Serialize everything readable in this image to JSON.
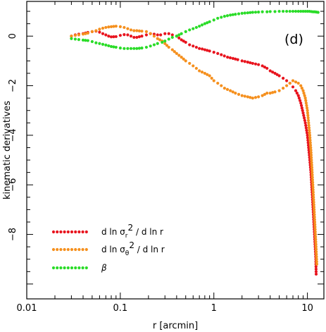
{
  "chart_data": {
    "type": "scatter",
    "xscale": "log",
    "xlim": [
      0.01,
      15
    ],
    "ylim": [
      -10.6,
      1.4
    ],
    "xlabel": "r [arcmin]",
    "ylabel": "kinematic derivatives",
    "panel_label": "(d)",
    "x_ticks": [
      0.01,
      0.1,
      1,
      10
    ],
    "x_tick_labels": [
      "0.01",
      "0.1",
      "1",
      "10"
    ],
    "y_ticks": [
      0,
      -2,
      -4,
      -6,
      -8
    ],
    "y_tick_labels": [
      "0",
      "−2",
      "−4",
      "−6",
      "−8"
    ],
    "legend_position": "bottom-left",
    "grid": false,
    "series": [
      {
        "id": "red",
        "color": "#e8141e",
        "legend": "d ln σ_r² / d ln r",
        "points": [
          [
            0.03,
            0.0
          ],
          [
            0.033,
            0.05
          ],
          [
            0.036,
            0.08
          ],
          [
            0.04,
            0.1
          ],
          [
            0.045,
            0.15
          ],
          [
            0.05,
            0.18
          ],
          [
            0.055,
            0.2
          ],
          [
            0.06,
            0.16
          ],
          [
            0.065,
            0.1
          ],
          [
            0.07,
            0.05
          ],
          [
            0.075,
            0.0
          ],
          [
            0.08,
            -0.03
          ],
          [
            0.09,
            -0.02
          ],
          [
            0.1,
            0.03
          ],
          [
            0.11,
            0.06
          ],
          [
            0.12,
            0.05
          ],
          [
            0.13,
            0.0
          ],
          [
            0.14,
            -0.05
          ],
          [
            0.15,
            -0.05
          ],
          [
            0.17,
            0.0
          ],
          [
            0.19,
            0.05
          ],
          [
            0.21,
            0.1
          ],
          [
            0.23,
            0.08
          ],
          [
            0.25,
            0.05
          ],
          [
            0.27,
            0.05
          ],
          [
            0.3,
            0.1
          ],
          [
            0.33,
            0.1
          ],
          [
            0.36,
            0.05
          ],
          [
            0.4,
            0.0
          ],
          [
            0.45,
            -0.15
          ],
          [
            0.5,
            -0.25
          ],
          [
            0.55,
            -0.35
          ],
          [
            0.6,
            -0.4
          ],
          [
            0.65,
            -0.45
          ],
          [
            0.7,
            -0.5
          ],
          [
            0.75,
            -0.52
          ],
          [
            0.8,
            -0.55
          ],
          [
            0.9,
            -0.6
          ],
          [
            1.0,
            -0.65
          ],
          [
            1.1,
            -0.7
          ],
          [
            1.2,
            -0.75
          ],
          [
            1.4,
            -0.85
          ],
          [
            1.6,
            -0.9
          ],
          [
            1.8,
            -0.95
          ],
          [
            2.0,
            -1.0
          ],
          [
            2.3,
            -1.05
          ],
          [
            2.6,
            -1.1
          ],
          [
            3.0,
            -1.15
          ],
          [
            3.3,
            -1.2
          ],
          [
            3.7,
            -1.3
          ],
          [
            4.0,
            -1.4
          ],
          [
            4.5,
            -1.5
          ],
          [
            5.0,
            -1.6
          ],
          [
            5.5,
            -1.7
          ],
          [
            6.0,
            -1.8
          ],
          [
            6.5,
            -1.9
          ],
          [
            7.0,
            -2.05
          ],
          [
            7.5,
            -2.2
          ],
          [
            8.0,
            -2.4
          ],
          [
            8.5,
            -2.7
          ],
          [
            9.0,
            -3.1
          ],
          [
            9.5,
            -3.5
          ],
          [
            10.0,
            -4.0
          ],
          [
            10.3,
            -4.5
          ],
          [
            10.6,
            -5.0
          ],
          [
            10.9,
            -5.5
          ],
          [
            11.1,
            -6.0
          ],
          [
            11.3,
            -6.5
          ],
          [
            11.5,
            -7.0
          ],
          [
            11.7,
            -7.5
          ],
          [
            11.9,
            -8.0
          ],
          [
            12.1,
            -8.5
          ],
          [
            12.3,
            -9.0
          ],
          [
            12.4,
            -9.6
          ]
        ]
      },
      {
        "id": "orange",
        "color": "#f5901e",
        "legend": "d ln σ_θ² / d ln r",
        "points": [
          [
            0.03,
            0.0
          ],
          [
            0.033,
            0.03
          ],
          [
            0.036,
            0.05
          ],
          [
            0.04,
            0.08
          ],
          [
            0.045,
            0.12
          ],
          [
            0.05,
            0.18
          ],
          [
            0.055,
            0.22
          ],
          [
            0.06,
            0.28
          ],
          [
            0.065,
            0.32
          ],
          [
            0.07,
            0.35
          ],
          [
            0.075,
            0.37
          ],
          [
            0.08,
            0.38
          ],
          [
            0.09,
            0.4
          ],
          [
            0.1,
            0.38
          ],
          [
            0.11,
            0.35
          ],
          [
            0.12,
            0.3
          ],
          [
            0.13,
            0.25
          ],
          [
            0.14,
            0.22
          ],
          [
            0.15,
            0.22
          ],
          [
            0.17,
            0.2
          ],
          [
            0.19,
            0.18
          ],
          [
            0.21,
            0.1
          ],
          [
            0.23,
            0.0
          ],
          [
            0.25,
            -0.1
          ],
          [
            0.28,
            -0.2
          ],
          [
            0.3,
            -0.3
          ],
          [
            0.33,
            -0.45
          ],
          [
            0.36,
            -0.55
          ],
          [
            0.4,
            -0.7
          ],
          [
            0.45,
            -0.85
          ],
          [
            0.5,
            -1.0
          ],
          [
            0.55,
            -1.1
          ],
          [
            0.6,
            -1.2
          ],
          [
            0.65,
            -1.3
          ],
          [
            0.7,
            -1.4
          ],
          [
            0.8,
            -1.5
          ],
          [
            0.9,
            -1.6
          ],
          [
            1.0,
            -1.8
          ],
          [
            1.1,
            -1.9
          ],
          [
            1.2,
            -2.0
          ],
          [
            1.3,
            -2.1
          ],
          [
            1.5,
            -2.2
          ],
          [
            1.7,
            -2.3
          ],
          [
            2.0,
            -2.4
          ],
          [
            2.3,
            -2.45
          ],
          [
            2.6,
            -2.5
          ],
          [
            3.0,
            -2.45
          ],
          [
            3.3,
            -2.4
          ],
          [
            3.7,
            -2.3
          ],
          [
            4.0,
            -2.3
          ],
          [
            4.5,
            -2.25
          ],
          [
            5.0,
            -2.2
          ],
          [
            5.5,
            -2.1
          ],
          [
            6.0,
            -2.0
          ],
          [
            6.5,
            -1.9
          ],
          [
            7.0,
            -1.8
          ],
          [
            7.5,
            -1.85
          ],
          [
            8.0,
            -1.9
          ],
          [
            8.5,
            -2.0
          ],
          [
            9.0,
            -2.2
          ],
          [
            9.5,
            -2.5
          ],
          [
            10.0,
            -3.0
          ],
          [
            10.3,
            -3.5
          ],
          [
            10.6,
            -4.0
          ],
          [
            10.9,
            -4.6
          ],
          [
            11.2,
            -5.4
          ],
          [
            11.5,
            -6.2
          ],
          [
            11.8,
            -7.0
          ],
          [
            12.1,
            -7.8
          ],
          [
            12.4,
            -8.6
          ],
          [
            12.6,
            -9.2
          ]
        ]
      },
      {
        "id": "green",
        "color": "#2adc28",
        "legend": "β",
        "points": [
          [
            0.03,
            -0.1
          ],
          [
            0.033,
            -0.12
          ],
          [
            0.036,
            -0.14
          ],
          [
            0.04,
            -0.16
          ],
          [
            0.045,
            -0.18
          ],
          [
            0.05,
            -0.22
          ],
          [
            0.055,
            -0.27
          ],
          [
            0.06,
            -0.3
          ],
          [
            0.065,
            -0.33
          ],
          [
            0.07,
            -0.36
          ],
          [
            0.075,
            -0.39
          ],
          [
            0.08,
            -0.42
          ],
          [
            0.09,
            -0.45
          ],
          [
            0.1,
            -0.48
          ],
          [
            0.11,
            -0.5
          ],
          [
            0.12,
            -0.5
          ],
          [
            0.13,
            -0.5
          ],
          [
            0.14,
            -0.5
          ],
          [
            0.15,
            -0.5
          ],
          [
            0.17,
            -0.48
          ],
          [
            0.19,
            -0.45
          ],
          [
            0.21,
            -0.4
          ],
          [
            0.23,
            -0.35
          ],
          [
            0.25,
            -0.3
          ],
          [
            0.28,
            -0.25
          ],
          [
            0.3,
            -0.2
          ],
          [
            0.33,
            -0.12
          ],
          [
            0.36,
            -0.05
          ],
          [
            0.4,
            0.0
          ],
          [
            0.45,
            0.1
          ],
          [
            0.5,
            0.18
          ],
          [
            0.55,
            0.25
          ],
          [
            0.6,
            0.3
          ],
          [
            0.65,
            0.35
          ],
          [
            0.7,
            0.4
          ],
          [
            0.8,
            0.5
          ],
          [
            0.9,
            0.58
          ],
          [
            1.0,
            0.65
          ],
          [
            1.1,
            0.72
          ],
          [
            1.2,
            0.76
          ],
          [
            1.3,
            0.8
          ],
          [
            1.5,
            0.85
          ],
          [
            1.7,
            0.88
          ],
          [
            2.0,
            0.92
          ],
          [
            2.3,
            0.94
          ],
          [
            2.6,
            0.96
          ],
          [
            3.0,
            0.97
          ],
          [
            3.3,
            0.98
          ],
          [
            3.7,
            0.98
          ],
          [
            4.0,
            0.99
          ],
          [
            4.5,
            0.99
          ],
          [
            5.0,
            1.0
          ],
          [
            5.5,
            1.0
          ],
          [
            6.0,
            1.0
          ],
          [
            6.5,
            1.0
          ],
          [
            7.0,
            1.0
          ],
          [
            7.5,
            1.0
          ],
          [
            8.0,
            1.0
          ],
          [
            8.5,
            1.0
          ],
          [
            9.0,
            1.0
          ],
          [
            9.5,
            1.0
          ],
          [
            10.0,
            1.0
          ],
          [
            10.5,
            1.0
          ],
          [
            11.0,
            0.99
          ],
          [
            11.5,
            0.98
          ],
          [
            12.0,
            0.98
          ],
          [
            12.5,
            0.97
          ],
          [
            13.0,
            0.96
          ]
        ]
      }
    ]
  }
}
